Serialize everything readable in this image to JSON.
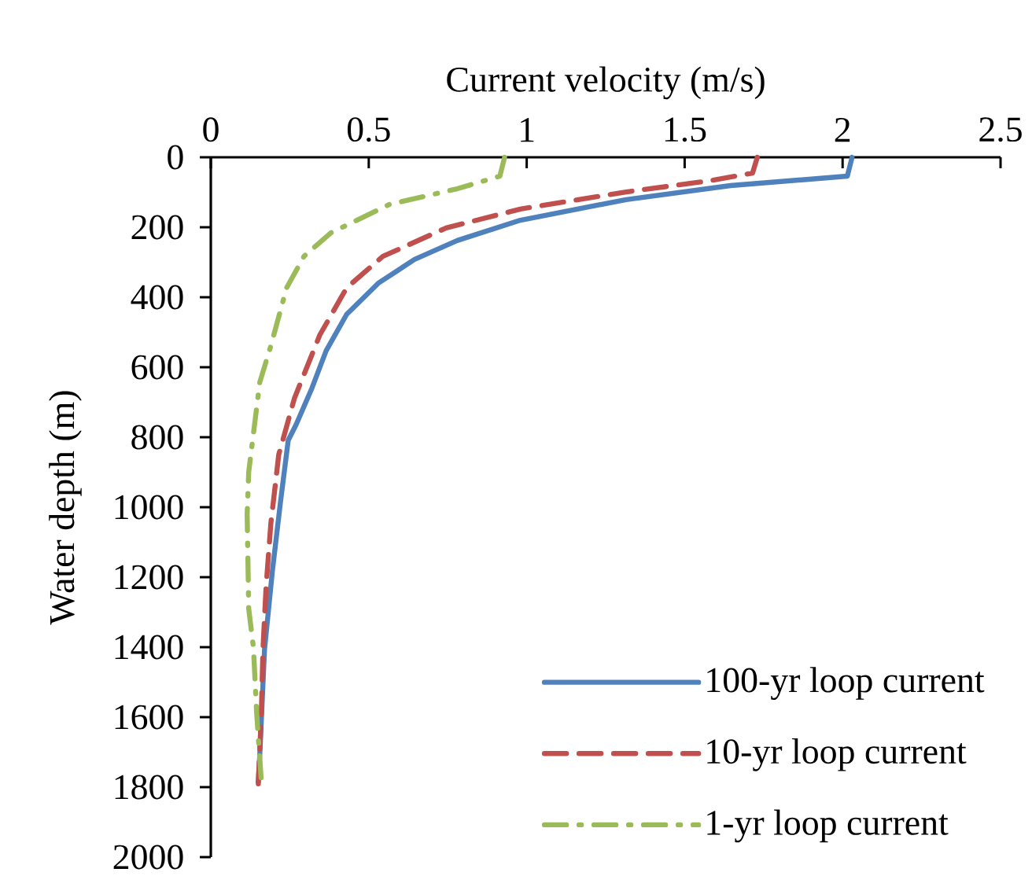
{
  "chart_data": {
    "type": "line",
    "xlabel": "Current velocity (m/s)",
    "ylabel": "Water depth (m)",
    "xlim": [
      0,
      2.5
    ],
    "xticks": [
      0,
      0.5,
      1,
      1.5,
      2,
      2.5
    ],
    "ylim": [
      2000,
      0
    ],
    "yticks": [
      0,
      200,
      400,
      600,
      800,
      1000,
      1200,
      1400,
      1600,
      1800,
      2000
    ],
    "grid": false,
    "legend": "bottom right",
    "marker": "none",
    "series": [
      {
        "name": "100-yr loop current",
        "color": "#4f81bd",
        "line_style": "solid",
        "x": [
          2.03,
          2.015,
          1.645,
          1.315,
          0.98,
          0.78,
          0.645,
          0.53,
          0.43,
          0.365,
          0.32,
          0.27,
          0.245,
          0.22,
          0.195,
          0.17,
          0.155,
          0.15
        ],
        "values": [
          0,
          54,
          81,
          121,
          180,
          238,
          292,
          360,
          449,
          553,
          660,
          764,
          809,
          989,
          1182,
          1407,
          1708,
          1785
        ]
      },
      {
        "name": "10-yr loop current",
        "color": "#c0504d",
        "line_style": "dashed",
        "x": [
          1.73,
          1.715,
          1.58,
          1.315,
          0.98,
          0.745,
          0.545,
          0.43,
          0.345,
          0.265,
          0.215,
          0.19,
          0.175,
          0.165,
          0.16,
          0.15
        ],
        "values": [
          0,
          45,
          67,
          99,
          148,
          202,
          283,
          373,
          508,
          688,
          850,
          1047,
          1227,
          1407,
          1587,
          1800
        ]
      },
      {
        "name": "1-yr loop current",
        "color": "#9bbb59",
        "line_style": "dashdot",
        "x": [
          0.93,
          0.915,
          0.78,
          0.565,
          0.38,
          0.295,
          0.24,
          0.19,
          0.155,
          0.12,
          0.115,
          0.12,
          0.135,
          0.145,
          0.16
        ],
        "values": [
          0,
          54,
          90,
          135,
          216,
          283,
          373,
          539,
          643,
          899,
          1020,
          1290,
          1402,
          1587,
          1784
        ]
      }
    ]
  }
}
